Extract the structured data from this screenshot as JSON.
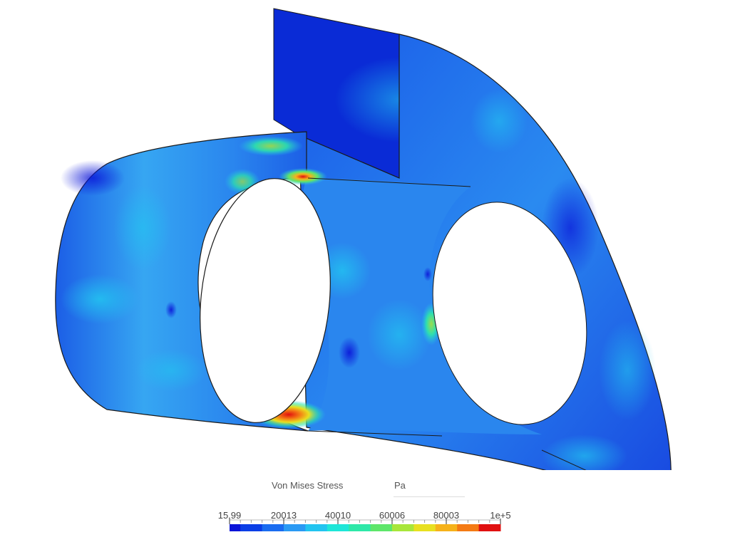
{
  "viewer": {
    "model_name": "",
    "colors": {
      "background": "#ffffff",
      "outline": "#1a1a1a",
      "low": "#0a2bd6",
      "high": "#e01010"
    }
  },
  "legend": {
    "title": "Von Mises Stress",
    "unit": "Pa",
    "ticks": [
      {
        "value": 15.99,
        "label": "15.99"
      },
      {
        "value": 20013,
        "label": "20013"
      },
      {
        "value": 40010,
        "label": "40010"
      },
      {
        "value": 60006,
        "label": "60006"
      },
      {
        "value": 80003,
        "label": "80003"
      },
      {
        "value": 100000,
        "label": "1e+5"
      }
    ],
    "range": [
      15.99,
      100000
    ],
    "steps": 25,
    "palette": [
      "#0a14d8",
      "#0a3ee6",
      "#1a6cf0",
      "#2a9af4",
      "#22c4f0",
      "#1ee6d8",
      "#2ee8a8",
      "#5ee66a",
      "#a8e63a",
      "#e8e020",
      "#f6b21a",
      "#f47a14",
      "#e01010"
    ]
  }
}
